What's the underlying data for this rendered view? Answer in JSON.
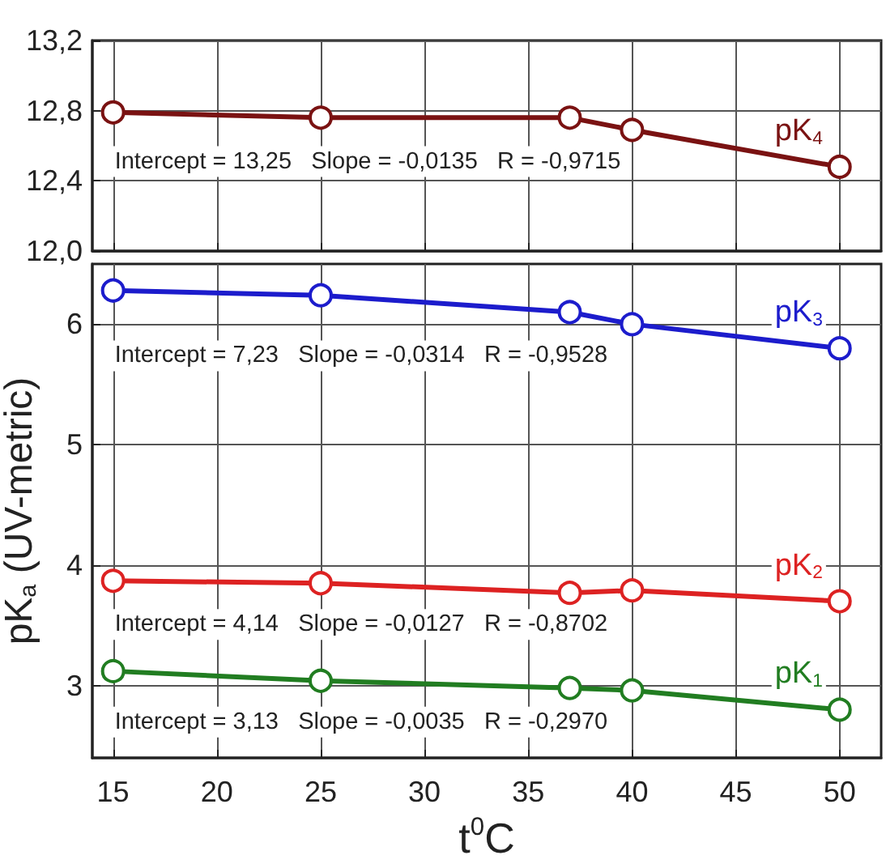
{
  "chart_data": [
    {
      "type": "line",
      "xlim": [
        14,
        52
      ],
      "xticks": [
        15,
        20,
        25,
        30,
        35,
        40,
        45,
        50
      ],
      "ylim": [
        12.0,
        13.2
      ],
      "yticks": [
        {
          "value": 12.0,
          "label": "12,0"
        },
        {
          "value": 12.4,
          "label": "12,4"
        },
        {
          "value": 12.8,
          "label": "12,8"
        },
        {
          "value": 13.2,
          "label": "13,2"
        }
      ],
      "tick_labels": "y",
      "grid": true,
      "marker": "circle",
      "line_style": "solid",
      "x": [
        15,
        25,
        37,
        40,
        50
      ],
      "series": [
        {
          "name": "pK$_{4}$",
          "color": "#7a1212",
          "values": [
            12.79,
            12.76,
            12.76,
            12.69,
            12.48
          ]
        }
      ],
      "annotations": [
        "Intercept = 13,25   Slope = -0,0135   R = -0,9715"
      ]
    },
    {
      "type": "line",
      "xlim": [
        14,
        52
      ],
      "xticks": [
        15,
        20,
        25,
        30,
        35,
        40,
        45,
        50
      ],
      "ylim": [
        2.4,
        6.5
      ],
      "yticks": [
        3,
        4,
        5,
        6
      ],
      "xlabel": "t$^{0}$C",
      "ylabel": "pK$_{a}$ (UV-metric)",
      "grid": true,
      "marker": "circle",
      "line_style": "solid",
      "x": [
        15,
        25,
        37,
        40,
        50
      ],
      "series": [
        {
          "name": "pK$_{3}$",
          "color": "#1c1ccc",
          "values": [
            6.28,
            6.24,
            6.1,
            6.0,
            5.8
          ]
        },
        {
          "name": "pK$_{2}$",
          "color": "#dd2222",
          "values": [
            3.87,
            3.85,
            3.77,
            3.79,
            3.7
          ]
        },
        {
          "name": "pK$_{1}$",
          "color": "#217d21",
          "values": [
            3.12,
            3.04,
            2.98,
            2.96,
            2.8
          ]
        }
      ],
      "annotations": [
        "Intercept = 7,23   Slope = -0,0314   R = -0,9528",
        "Intercept = 4,14   Slope = -0,0127   R = -0,8702",
        "Intercept = 3,13   Slope = -0,0035   R = -0,2970"
      ]
    }
  ]
}
